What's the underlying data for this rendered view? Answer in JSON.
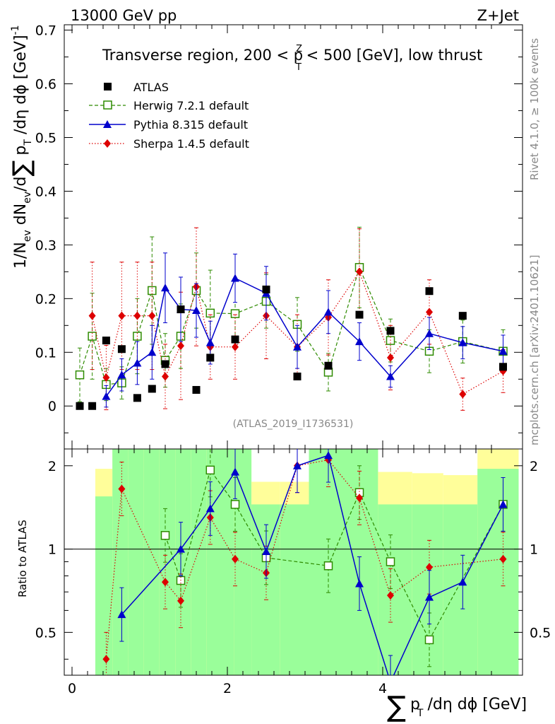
{
  "header": {
    "left": "13000 GeV pp",
    "right": "Z+Jet"
  },
  "chart_data": {
    "type": "scatter",
    "title": "Transverse region, 200 < p_T^Z < 500 [GeV], low thrust",
    "title_parts": {
      "pre": "Transverse region, 200 < p",
      "sup": "Z",
      "sub": "T",
      "post": " < 500 [GeV], low thrust"
    },
    "analysis_id": "(ATLAS_2019_I1736531)",
    "side_labels": {
      "rivet": "Rivet 4.1.0, ≥ 100k events",
      "mcplots": "mcplots.cern.ch [arXiv:2401.10621]"
    },
    "xlabel": {
      "sum": "∑",
      "p": "p",
      "sub": "T",
      "rest": "/dη dϕ [GeV]"
    },
    "ylabel": {
      "main": "1/N",
      "ev1": "ev",
      "mid": " dN",
      "ev2": "ev",
      "d": "/d",
      "sum": "∑",
      "p": " p",
      "sub": "T",
      "rest": " /dη dϕ  [GeV]",
      "exp": "-1"
    },
    "ratio_ylabel": "Ratio to ATLAS",
    "xlim": [
      -0.1,
      5.8
    ],
    "ylim": [
      -0.08,
      0.71
    ],
    "ratio_ylim": [
      0.35,
      2.3
    ],
    "x_ticks": [
      "0",
      "2",
      "4"
    ],
    "x_tick_values": [
      0,
      2,
      4
    ],
    "y_ticks": [
      "0",
      "0.1",
      "0.2",
      "0.3",
      "0.4",
      "0.5",
      "0.6",
      "0.7"
    ],
    "y_tick_values": [
      0,
      0.1,
      0.2,
      0.3,
      0.4,
      0.5,
      0.6,
      0.7
    ],
    "ratio_y_ticks": [
      "0.5",
      "1",
      "2"
    ],
    "ratio_y_tick_values": [
      0.5,
      1,
      2
    ],
    "legend": [
      "ATLAS",
      "Herwig 7.2.1 default",
      "Pythia 8.315 default",
      "Sherpa 1.4.5 default"
    ],
    "bin_edges": [
      0.3,
      0.52,
      0.72,
      0.92,
      1.12,
      1.33,
      1.53,
      1.73,
      2.09,
      2.31,
      2.68,
      3.05,
      3.45,
      3.94,
      4.38,
      4.78,
      5.22,
      5.75
    ],
    "band_green_lo": [
      0.35,
      0.35,
      0.35,
      0.35,
      0.35,
      0.35,
      0.35,
      0.35,
      0.35,
      0.35,
      0.35,
      0.35,
      0.35,
      0.35,
      0.35,
      0.35,
      0.35
    ],
    "band_green_hi": [
      1.55,
      2.3,
      2.3,
      2.3,
      2.3,
      2.3,
      2.3,
      2.3,
      2.3,
      1.45,
      1.45,
      2.3,
      2.3,
      1.45,
      1.45,
      1.45,
      1.95
    ],
    "band_yellow_lo": [
      0.35,
      0.35,
      0.35,
      0.35,
      0.35,
      0.35,
      0.35,
      0.35,
      0.35,
      0.35,
      0.35,
      0.35,
      0.35,
      0.35,
      0.35,
      0.35,
      0.35
    ],
    "band_yellow_hi": [
      1.95,
      2.3,
      2.3,
      2.3,
      2.3,
      2.3,
      2.3,
      2.3,
      2.3,
      1.75,
      1.75,
      2.3,
      2.3,
      1.9,
      1.88,
      1.85,
      2.3
    ],
    "series": [
      {
        "name": "ATLAS",
        "color": "#000000",
        "x": [
          0.1,
          0.26,
          0.44,
          0.64,
          0.84,
          1.03,
          1.2,
          1.4,
          1.6,
          1.78,
          2.1,
          2.5,
          2.9,
          3.3,
          3.7,
          4.1,
          4.6,
          5.03,
          5.55
        ],
        "y": [
          0.0,
          0.0,
          0.122,
          0.106,
          0.015,
          0.032,
          0.078,
          0.18,
          0.03,
          0.09,
          0.124,
          0.217,
          0.055,
          0.075,
          0.17,
          0.14,
          0.214,
          0.168,
          0.073
        ]
      },
      {
        "name": "Herwig 7.2.1 default",
        "color": "#2e8b00",
        "x": [
          0.1,
          0.26,
          0.44,
          0.64,
          0.84,
          1.03,
          1.2,
          1.4,
          1.6,
          1.78,
          2.1,
          2.5,
          2.9,
          3.3,
          3.7,
          4.1,
          4.6,
          5.03,
          5.55
        ],
        "y": [
          0.058,
          0.13,
          0.04,
          0.043,
          0.13,
          0.215,
          0.085,
          0.13,
          0.215,
          0.173,
          0.172,
          0.195,
          0.152,
          0.063,
          0.258,
          0.122,
          0.102,
          0.12,
          0.102
        ],
        "err": [
          0.05,
          0.08,
          0.03,
          0.03,
          0.07,
          0.1,
          0.05,
          0.06,
          0.07,
          0.08,
          0.06,
          0.05,
          0.05,
          0.035,
          0.075,
          0.04,
          0.04,
          0.04,
          0.04
        ],
        "ratio_x": [
          1.2,
          1.4,
          1.78,
          2.1,
          2.5,
          3.3,
          3.7,
          4.1,
          4.6,
          5.55
        ],
        "ratio_y": [
          1.12,
          0.77,
          1.93,
          1.45,
          0.93,
          0.87,
          1.6,
          0.9,
          0.47,
          1.45
        ]
      },
      {
        "name": "Pythia 8.315 default",
        "color": "#0000cc",
        "x": [
          0.44,
          0.64,
          0.84,
          1.03,
          1.2,
          1.4,
          1.6,
          1.78,
          2.1,
          2.5,
          2.9,
          3.3,
          3.7,
          4.1,
          4.6,
          5.03,
          5.55
        ],
        "y": [
          0.018,
          0.058,
          0.08,
          0.1,
          0.22,
          0.18,
          0.178,
          0.118,
          0.238,
          0.21,
          0.11,
          0.175,
          0.12,
          0.055,
          0.135,
          0.118,
          0.102
        ],
        "err": [
          0.02,
          0.03,
          0.04,
          0.05,
          0.065,
          0.06,
          0.05,
          0.04,
          0.045,
          0.05,
          0.04,
          0.04,
          0.035,
          0.02,
          0.03,
          0.03,
          0.03
        ],
        "ratio_x": [
          0.64,
          1.4,
          1.78,
          2.1,
          2.5,
          2.9,
          3.3,
          3.7,
          4.1,
          4.6,
          5.03,
          5.55
        ],
        "ratio_y": [
          0.58,
          1.0,
          1.4,
          1.9,
          0.98,
          2.0,
          2.18,
          0.75,
          0.33,
          0.67,
          0.76,
          1.45
        ]
      },
      {
        "name": "Sherpa 1.4.5 default",
        "color": "#dd0000",
        "x": [
          0.26,
          0.44,
          0.64,
          0.84,
          1.03,
          1.2,
          1.4,
          1.6,
          1.78,
          2.1,
          2.5,
          2.9,
          3.3,
          3.7,
          4.1,
          4.6,
          5.03,
          5.55
        ],
        "y": [
          0.168,
          0.053,
          0.168,
          0.168,
          0.168,
          0.055,
          0.112,
          0.222,
          0.11,
          0.11,
          0.168,
          0.11,
          0.165,
          0.25,
          0.09,
          0.175,
          0.022,
          0.065
        ],
        "err": [
          0.1,
          0.06,
          0.1,
          0.1,
          0.1,
          0.06,
          0.1,
          0.11,
          0.06,
          0.06,
          0.08,
          0.06,
          0.07,
          0.08,
          0.06,
          0.06,
          0.03,
          0.04
        ],
        "ratio_x": [
          0.44,
          0.64,
          1.2,
          1.4,
          1.78,
          2.1,
          2.5,
          2.9,
          3.3,
          3.7,
          4.1,
          4.6,
          5.55
        ],
        "ratio_y": [
          0.4,
          1.65,
          0.76,
          0.65,
          1.3,
          0.92,
          0.82,
          2.0,
          2.1,
          1.53,
          0.68,
          0.86,
          0.92
        ]
      }
    ]
  }
}
